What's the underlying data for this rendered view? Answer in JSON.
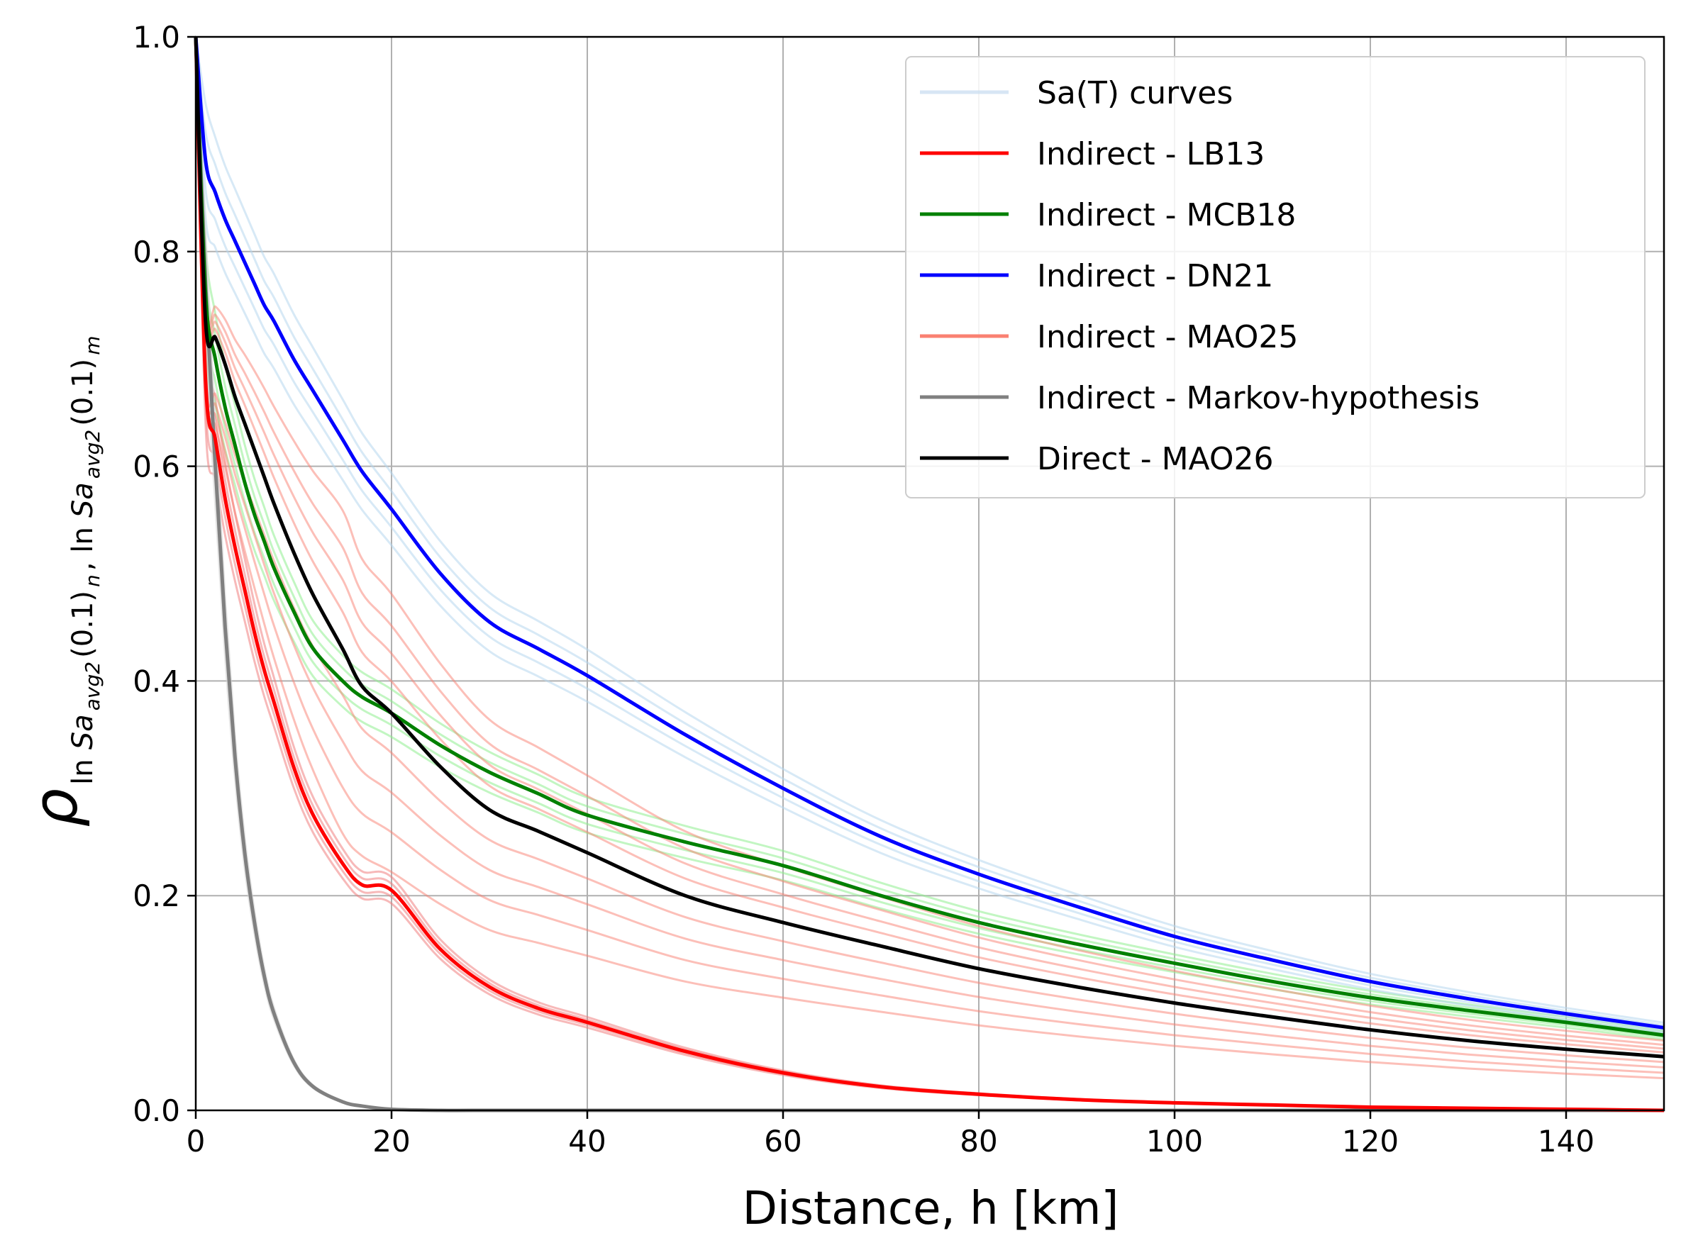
{
  "chart_data": {
    "type": "line",
    "xlabel": "Distance, h [km]",
    "ylabel": {
      "rho": "ρ",
      "ln": "ln",
      "sa": "Sa",
      "avg2": "avg2",
      "open": "(0.1)",
      "n": "n",
      "m": "m",
      "sep": ", "
    },
    "xlim": [
      0,
      150
    ],
    "ylim": [
      0,
      1
    ],
    "x_ticks": [
      0,
      20,
      40,
      60,
      80,
      100,
      120,
      140
    ],
    "x_tick_labels": [
      "0",
      "20",
      "40",
      "60",
      "80",
      "100",
      "120",
      "140"
    ],
    "y_ticks": [
      0,
      0.2,
      0.4,
      0.6,
      0.8,
      1.0
    ],
    "y_tick_labels": [
      "0.0",
      "0.2",
      "0.4",
      "0.6",
      "0.8",
      "1.0"
    ],
    "grid": true,
    "legend_position": "top-right",
    "legend": [
      {
        "label": "Sa(T) curves",
        "color": "#c6dbef",
        "alpha": 0.7
      },
      {
        "label": "Indirect - LB13",
        "color": "#ff0000",
        "alpha": 1
      },
      {
        "label": "Indirect - MCB18",
        "color": "#008000",
        "alpha": 1
      },
      {
        "label": "Indirect - DN21",
        "color": "#0000ff",
        "alpha": 1
      },
      {
        "label": "Indirect - MAO25",
        "color": "#fa8072",
        "alpha": 1
      },
      {
        "label": "Indirect - Markov-hypothesis",
        "color": "#808080",
        "alpha": 1
      },
      {
        "label": "Direct - MAO26",
        "color": "#000000",
        "alpha": 1
      }
    ],
    "x": [
      0,
      1,
      2,
      3,
      4,
      5,
      6,
      7,
      8,
      10,
      12,
      15,
      17,
      20,
      25,
      30,
      35,
      40,
      50,
      60,
      70,
      80,
      90,
      100,
      110,
      120,
      130,
      140,
      150
    ],
    "series": [
      {
        "name": "Indirect - LB13",
        "color": "#ff0000",
        "width": 5,
        "values": [
          1.0,
          0.68,
          0.625,
          0.57,
          0.525,
          0.485,
          0.445,
          0.41,
          0.38,
          0.32,
          0.275,
          0.23,
          0.21,
          0.205,
          0.15,
          0.115,
          0.095,
          0.082,
          0.055,
          0.035,
          0.022,
          0.015,
          0.01,
          0.007,
          0.005,
          0.003,
          0.002,
          0.001,
          0.0
        ]
      },
      {
        "name": "Indirect - MCB18",
        "color": "#008000",
        "width": 5,
        "values": [
          1.0,
          0.76,
          0.7,
          0.655,
          0.62,
          0.585,
          0.555,
          0.53,
          0.505,
          0.465,
          0.43,
          0.4,
          0.385,
          0.37,
          0.34,
          0.315,
          0.295,
          0.275,
          0.25,
          0.228,
          0.2,
          0.175,
          0.155,
          0.137,
          0.12,
          0.105,
          0.093,
          0.082,
          0.07
        ]
      },
      {
        "name": "Indirect - DN21",
        "color": "#0000ff",
        "width": 5,
        "values": [
          1.0,
          0.885,
          0.855,
          0.83,
          0.81,
          0.79,
          0.77,
          0.75,
          0.735,
          0.7,
          0.67,
          0.625,
          0.595,
          0.56,
          0.5,
          0.455,
          0.43,
          0.405,
          0.35,
          0.3,
          0.255,
          0.22,
          0.19,
          0.162,
          0.14,
          0.12,
          0.104,
          0.09,
          0.077
        ]
      },
      {
        "name": "Indirect - Markov-hypothesis",
        "color": "#808080",
        "width": 5,
        "values": [
          1.0,
          0.77,
          0.6,
          0.45,
          0.33,
          0.24,
          0.175,
          0.125,
          0.09,
          0.045,
          0.022,
          0.008,
          0.004,
          0.001,
          0.0,
          0.0,
          0.0,
          0.0,
          0.0,
          0.0,
          0.0,
          0.0,
          0.0,
          0.0,
          0.0,
          0.0,
          0.0,
          0.0,
          0.0
        ]
      },
      {
        "name": "Direct - MAO26",
        "color": "#000000",
        "width": 5,
        "values": [
          1.0,
          0.735,
          0.72,
          0.695,
          0.665,
          0.64,
          0.615,
          0.59,
          0.565,
          0.52,
          0.48,
          0.43,
          0.395,
          0.37,
          0.32,
          0.28,
          0.26,
          0.24,
          0.2,
          0.175,
          0.153,
          0.132,
          0.115,
          0.1,
          0.087,
          0.075,
          0.065,
          0.057,
          0.05
        ]
      }
    ]
  }
}
